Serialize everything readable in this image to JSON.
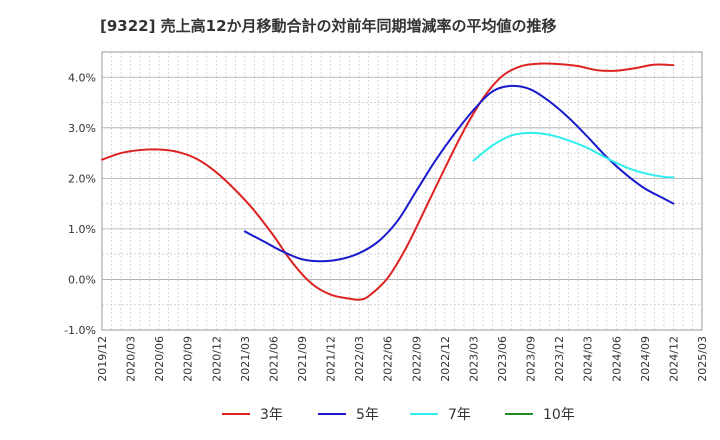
{
  "chart_data": {
    "type": "line",
    "title": "[9322]  売上高12か月移動合計の対前年同期増減率の平均値の推移",
    "xlabel": "",
    "ylabel": "",
    "ylim": [
      -1.0,
      4.5
    ],
    "yticks": [
      -1.0,
      0.0,
      1.0,
      2.0,
      3.0,
      4.0
    ],
    "ytick_labels": [
      "-1.0%",
      "0.0%",
      "1.0%",
      "2.0%",
      "3.0%",
      "4.0%"
    ],
    "xlim": [
      "2019-12",
      "2025-03"
    ],
    "xtick_labels": [
      "2019/12",
      "2020/03",
      "2020/06",
      "2020/09",
      "2020/12",
      "2021/03",
      "2021/06",
      "2021/09",
      "2021/12",
      "2022/03",
      "2022/06",
      "2022/09",
      "2022/12",
      "2023/03",
      "2023/06",
      "2023/09",
      "2023/12",
      "2024/03",
      "2024/06",
      "2024/09",
      "2024/12",
      "2025/03"
    ],
    "grid": true,
    "legend_position": "bottom",
    "series": [
      {
        "name": "3年",
        "color": "#dd2222",
        "points": [
          [
            "2019-12",
            2.37
          ],
          [
            "2020-02",
            2.5
          ],
          [
            "2020-04",
            2.56
          ],
          [
            "2020-06",
            2.57
          ],
          [
            "2020-08",
            2.52
          ],
          [
            "2020-10",
            2.38
          ],
          [
            "2020-12",
            2.12
          ],
          [
            "2021-02",
            1.77
          ],
          [
            "2021-04",
            1.36
          ],
          [
            "2021-06",
            0.87
          ],
          [
            "2021-08",
            0.33
          ],
          [
            "2021-10",
            -0.08
          ],
          [
            "2021-12",
            -0.3
          ],
          [
            "2022-02",
            -0.38
          ],
          [
            "2022-03",
            -0.4
          ],
          [
            "2022-04",
            -0.33
          ],
          [
            "2022-06",
            0.03
          ],
          [
            "2022-08",
            0.65
          ],
          [
            "2022-10",
            1.42
          ],
          [
            "2022-12",
            2.2
          ],
          [
            "2023-02",
            2.95
          ],
          [
            "2023-04",
            3.58
          ],
          [
            "2023-06",
            4.02
          ],
          [
            "2023-08",
            4.22
          ],
          [
            "2023-10",
            4.27
          ],
          [
            "2023-12",
            4.26
          ],
          [
            "2024-02",
            4.22
          ],
          [
            "2024-04",
            4.14
          ],
          [
            "2024-06",
            4.13
          ],
          [
            "2024-08",
            4.18
          ],
          [
            "2024-10",
            4.25
          ],
          [
            "2024-12",
            4.24
          ]
        ]
      },
      {
        "name": "5年",
        "color": "#1a1acc",
        "points": [
          [
            "2021-03",
            0.95
          ],
          [
            "2021-05",
            0.75
          ],
          [
            "2021-07",
            0.55
          ],
          [
            "2021-09",
            0.4
          ],
          [
            "2021-11",
            0.36
          ],
          [
            "2022-01",
            0.4
          ],
          [
            "2022-03",
            0.52
          ],
          [
            "2022-05",
            0.75
          ],
          [
            "2022-07",
            1.15
          ],
          [
            "2022-09",
            1.75
          ],
          [
            "2022-11",
            2.35
          ],
          [
            "2023-01",
            2.88
          ],
          [
            "2023-03",
            3.35
          ],
          [
            "2023-05",
            3.72
          ],
          [
            "2023-07",
            3.83
          ],
          [
            "2023-09",
            3.76
          ],
          [
            "2023-11",
            3.52
          ],
          [
            "2024-01",
            3.2
          ],
          [
            "2024-03",
            2.82
          ],
          [
            "2024-05",
            2.42
          ],
          [
            "2024-07",
            2.08
          ],
          [
            "2024-09",
            1.8
          ],
          [
            "2024-11",
            1.6
          ],
          [
            "2024-12",
            1.5
          ]
        ]
      },
      {
        "name": "7年",
        "color": "#33eeee",
        "points": [
          [
            "2023-03",
            2.35
          ],
          [
            "2023-05",
            2.65
          ],
          [
            "2023-07",
            2.85
          ],
          [
            "2023-09",
            2.9
          ],
          [
            "2023-11",
            2.86
          ],
          [
            "2024-01",
            2.75
          ],
          [
            "2024-03",
            2.6
          ],
          [
            "2024-05",
            2.4
          ],
          [
            "2024-07",
            2.22
          ],
          [
            "2024-09",
            2.1
          ],
          [
            "2024-11",
            2.03
          ],
          [
            "2024-12",
            2.02
          ]
        ]
      },
      {
        "name": "10年",
        "color": "#228b22",
        "points": []
      }
    ]
  }
}
